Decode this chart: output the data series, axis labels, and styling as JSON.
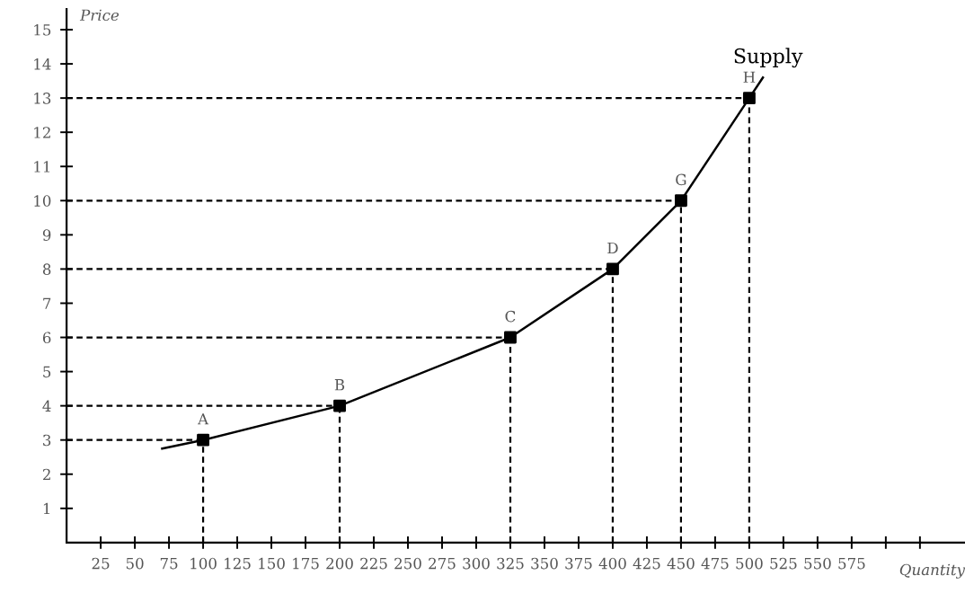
{
  "chart_data": {
    "type": "line",
    "xlabel": "Quantity",
    "ylabel": "Price",
    "series": [
      {
        "name": "Supply",
        "color": "#000000",
        "x": [
          70,
          100,
          200,
          325,
          400,
          450,
          500,
          510
        ],
        "values": [
          2.75,
          3,
          4,
          6,
          8,
          10,
          13,
          13.6
        ]
      },
      {
        "type": "scatter",
        "color": "#000000",
        "marker": "square",
        "line_style": "dashed",
        "x": [
          100,
          200,
          325,
          400,
          450,
          500
        ],
        "values": [
          3,
          4,
          6,
          8,
          10,
          13
        ]
      }
    ],
    "annotations": [
      {
        "text": "A",
        "x": 100,
        "y": 3
      },
      {
        "text": "B",
        "x": 200,
        "y": 4
      },
      {
        "text": "C",
        "x": 325,
        "y": 6
      },
      {
        "text": "D",
        "x": 400,
        "y": 8
      },
      {
        "text": "G",
        "x": 450,
        "y": 10
      },
      {
        "text": "H",
        "x": 500,
        "y": 13
      }
    ],
    "xlim": [
      0,
      658
    ],
    "ylim": [
      0,
      15.6
    ],
    "xticks": [
      25,
      50,
      75,
      100,
      125,
      150,
      175,
      200,
      225,
      250,
      275,
      300,
      325,
      350,
      375,
      400,
      425,
      450,
      475,
      500,
      525,
      550,
      575,
      {
        "value": 600,
        "label": null
      },
      {
        "value": 625,
        "label": null
      }
    ],
    "yticks": [
      1,
      2,
      3,
      4,
      5,
      6,
      7,
      8,
      9,
      10,
      11,
      12,
      13,
      14,
      15
    ],
    "legend": false
  }
}
